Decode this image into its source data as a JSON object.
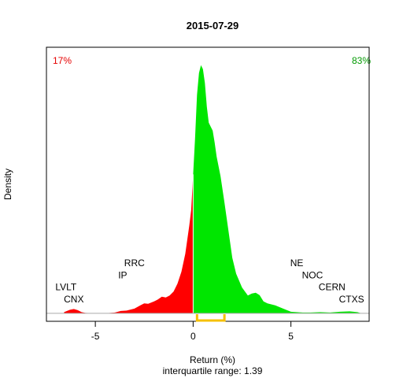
{
  "chart_data": {
    "type": "area",
    "title": "2015-07-29",
    "xlabel": "Return (%)",
    "ylabel": "Density",
    "subtitle": "interquartile range: 1.39",
    "xlim": [
      -7.5,
      9.0
    ],
    "x_ticks": [
      -5,
      0,
      5
    ],
    "x_tick_labels": [
      "-5",
      "0",
      "5"
    ],
    "ylim": [
      -0.02,
      0.67
    ],
    "grid": false,
    "negative_share_label": "17%",
    "positive_share_label": "83%",
    "colors": {
      "negative": "#ff0000",
      "positive": "#00e600",
      "negative_label": "#e60000",
      "positive_label": "#009900",
      "iqr": "#f5c000"
    },
    "density": {
      "x": [
        -6.6,
        -6.3,
        -6.1,
        -5.9,
        -5.7,
        -5.5,
        -5.0,
        -4.5,
        -4.0,
        -3.7,
        -3.4,
        -3.0,
        -2.7,
        -2.5,
        -2.3,
        -2.0,
        -1.8,
        -1.6,
        -1.4,
        -1.2,
        -1.0,
        -0.8,
        -0.6,
        -0.4,
        -0.3,
        -0.2,
        -0.1,
        0.0,
        0.1,
        0.2,
        0.3,
        0.4,
        0.5,
        0.6,
        0.7,
        0.8,
        0.9,
        1.0,
        1.1,
        1.2,
        1.4,
        1.6,
        1.8,
        2.0,
        2.2,
        2.5,
        2.8,
        3.0,
        3.2,
        3.4,
        3.6,
        3.8,
        4.2,
        4.6,
        5.0,
        5.3,
        5.6,
        6.0,
        6.5,
        7.0,
        7.5,
        8.0,
        8.4,
        8.6
      ],
      "y": [
        0.003,
        0.009,
        0.011,
        0.008,
        0.003,
        0.001,
        0.0,
        0.0,
        0.002,
        0.006,
        0.007,
        0.012,
        0.02,
        0.025,
        0.024,
        0.03,
        0.035,
        0.042,
        0.04,
        0.045,
        0.055,
        0.075,
        0.105,
        0.15,
        0.185,
        0.22,
        0.26,
        0.35,
        0.44,
        0.55,
        0.605,
        0.625,
        0.615,
        0.58,
        0.52,
        0.48,
        0.47,
        0.46,
        0.43,
        0.395,
        0.345,
        0.28,
        0.21,
        0.14,
        0.1,
        0.065,
        0.045,
        0.05,
        0.052,
        0.046,
        0.03,
        0.025,
        0.02,
        0.012,
        0.004,
        0.003,
        0.002,
        0.002,
        0.003,
        0.002,
        0.004,
        0.005,
        0.003,
        0.0
      ]
    },
    "annotations": [
      {
        "text": "LVLT",
        "x": -6.5,
        "y": 0.058
      },
      {
        "text": "CNX",
        "x": -6.1,
        "y": 0.028
      },
      {
        "text": "RRC",
        "x": -3.0,
        "y": 0.119
      },
      {
        "text": "IP",
        "x": -3.6,
        "y": 0.088
      },
      {
        "text": "NE",
        "x": 5.3,
        "y": 0.119
      },
      {
        "text": "NOC",
        "x": 6.1,
        "y": 0.088
      },
      {
        "text": "CERN",
        "x": 7.1,
        "y": 0.058
      },
      {
        "text": "CTXS",
        "x": 8.1,
        "y": 0.028
      }
    ],
    "interquartile_range": {
      "from": 0.2,
      "to": 1.6,
      "value": 1.39
    }
  }
}
